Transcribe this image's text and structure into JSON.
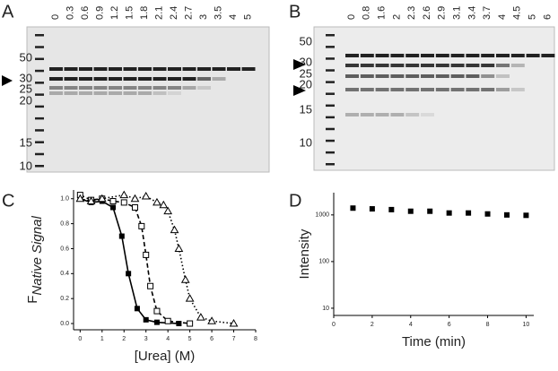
{
  "panels": [
    {
      "label": "A",
      "lanes": [
        "0",
        "0.3",
        "0.6",
        "0.9",
        "1.2",
        "1.5",
        "1.8",
        "2.1",
        "2.4",
        "2.7",
        "3",
        "3.5",
        "4",
        "5"
      ],
      "markers": [
        "50",
        "30",
        "25",
        "20",
        "15",
        "10"
      ]
    },
    {
      "label": "B",
      "lanes": [
        "0",
        "0.8",
        "1.6",
        "2",
        "2.3",
        "2.6",
        "2.9",
        "3.1",
        "3.4",
        "3.7",
        "4",
        "4.5",
        "5",
        "6"
      ],
      "markers": [
        "50",
        "30",
        "25",
        "20",
        "15",
        "10"
      ]
    }
  ],
  "chart_data": [
    {
      "type": "line",
      "label": "C",
      "y_label_main": "F",
      "y_label_sub": "Native Signal",
      "x_label": "[Urea] (M)",
      "xlim": [
        -0.3,
        8
      ],
      "xticks": [
        0,
        1,
        2,
        3,
        4,
        5,
        6,
        7,
        8
      ],
      "ylim": [
        -0.05,
        1.07
      ],
      "yticks": [
        {
          "value": 0,
          "label": "0.0"
        },
        {
          "value": 0.2,
          "label": "0.2"
        },
        {
          "value": 0.4,
          "label": "0.4"
        },
        {
          "value": 0.6,
          "label": "0.6"
        },
        {
          "value": 0.8,
          "label": "0.8"
        },
        {
          "value": 1,
          "label": "1.0"
        }
      ],
      "series": [
        {
          "marker": "filled-square",
          "line_style": "solid",
          "color": "#000000",
          "x": [
            0,
            0.5,
            1,
            1.5,
            1.9,
            2.2,
            2.6,
            3,
            3.5,
            4.5
          ],
          "values": [
            1.0,
            0.97,
            0.98,
            0.93,
            0.7,
            0.4,
            0.12,
            0.03,
            0.01,
            0.0
          ]
        },
        {
          "marker": "open-square",
          "line_style": "dashed",
          "color": "#000000",
          "x": [
            0,
            0.5,
            1,
            1.5,
            2,
            2.5,
            2.8,
            3,
            3.2,
            3.5,
            4,
            5
          ],
          "values": [
            1.03,
            0.99,
            1.0,
            0.98,
            0.97,
            0.93,
            0.78,
            0.55,
            0.3,
            0.1,
            0.02,
            0.0
          ]
        },
        {
          "marker": "open-triangle",
          "line_style": "dotted",
          "color": "#000000",
          "x": [
            0,
            0.5,
            1,
            2,
            2.5,
            3,
            3.5,
            3.8,
            4,
            4.3,
            4.5,
            4.8,
            5,
            5.5,
            6,
            7
          ],
          "values": [
            1.0,
            0.98,
            1.0,
            1.03,
            1.0,
            1.02,
            0.97,
            0.95,
            0.9,
            0.75,
            0.6,
            0.35,
            0.2,
            0.05,
            0.02,
            0.0
          ]
        }
      ]
    },
    {
      "type": "scatter",
      "label": "D",
      "y_label": "Intensity",
      "x_label": "Time (min)",
      "log_y": true,
      "xlim": [
        0,
        10.4
      ],
      "xticks": [
        0,
        2,
        4,
        6,
        8,
        10
      ],
      "ylim": [
        7,
        3000
      ],
      "yticks": [
        10,
        100,
        1000
      ],
      "series": [
        {
          "marker": "filled-square",
          "color": "#000000",
          "x": [
            1,
            2,
            3,
            4,
            5,
            6,
            7,
            8,
            9,
            10
          ],
          "values": [
            1400,
            1350,
            1300,
            1200,
            1200,
            1100,
            1100,
            1050,
            1000,
            980
          ]
        }
      ]
    }
  ]
}
